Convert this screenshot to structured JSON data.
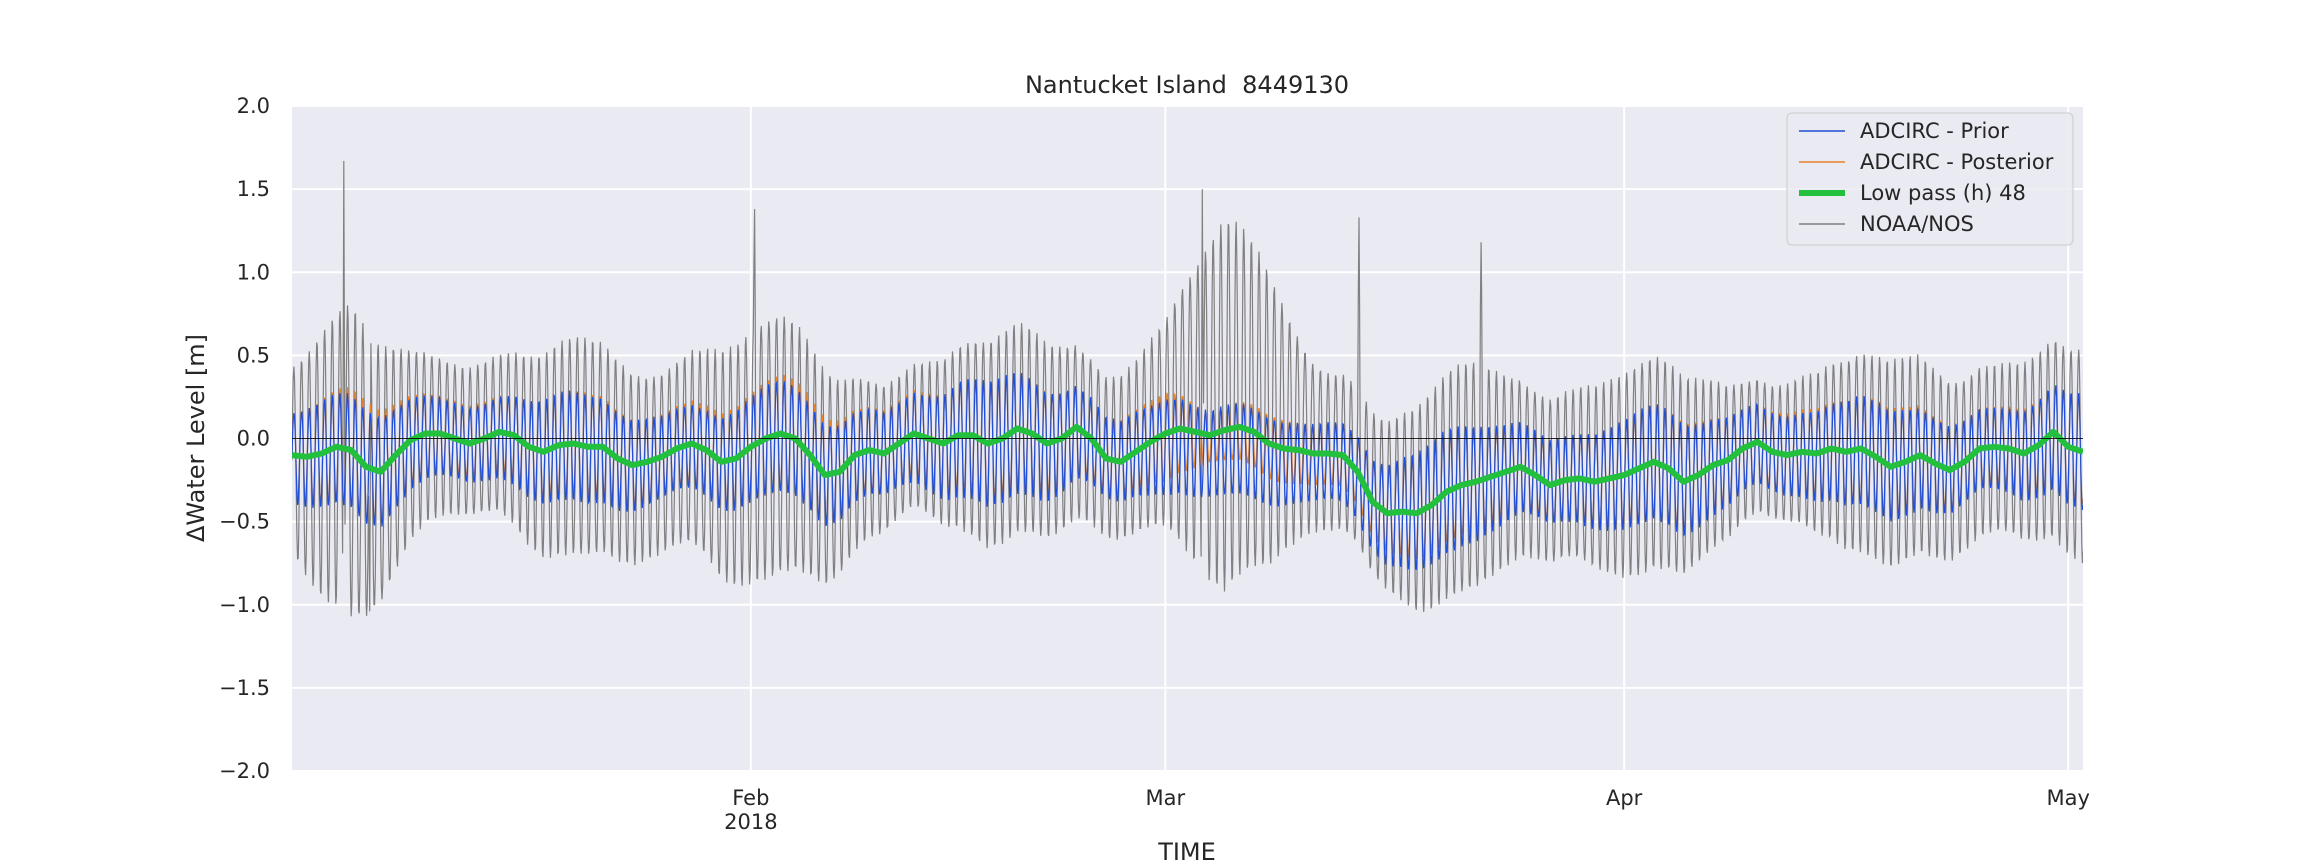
{
  "chart_data": {
    "type": "line",
    "title": "Nantucket Island  8449130",
    "xlabel": "TIME",
    "ylabel": "ΔWater Level [m]",
    "ylim": [
      -2.0,
      2.0
    ],
    "xlim": [
      "2018-01-01",
      "2018-05-02"
    ],
    "grid": true,
    "legend_position": "top-right",
    "y_ticks": [
      {
        "value": 2.0,
        "label": "2.0"
      },
      {
        "value": 1.5,
        "label": "1.5"
      },
      {
        "value": 1.0,
        "label": "1.0"
      },
      {
        "value": 0.5,
        "label": "0.5"
      },
      {
        "value": 0.0,
        "label": "0.0"
      },
      {
        "value": -0.5,
        "label": "−0.5"
      },
      {
        "value": -1.0,
        "label": "−1.0"
      },
      {
        "value": -1.5,
        "label": "−1.5"
      },
      {
        "value": -2.0,
        "label": "−2.0"
      }
    ],
    "x_ticks": [
      {
        "date": "2018-02-01",
        "label": "Feb",
        "sublabel": "2018"
      },
      {
        "date": "2018-03-01",
        "label": "Mar",
        "sublabel": ""
      },
      {
        "date": "2018-04-01",
        "label": "Apr",
        "sublabel": ""
      },
      {
        "date": "2018-05-01",
        "label": "May",
        "sublabel": ""
      }
    ],
    "tide_period_hours": 12.42,
    "series": [
      {
        "name": "ADCIRC - Prior",
        "color": "#1f4fd8",
        "kind": "tidal",
        "tidal_amplitude_m": 0.3,
        "envelope": [
          [
            "2018-01-01",
            0.27
          ],
          [
            "2018-01-07",
            0.3
          ],
          [
            "2018-01-15",
            0.26
          ],
          [
            "2018-01-25",
            0.3
          ],
          [
            "2018-02-05",
            0.28
          ],
          [
            "2018-02-15",
            0.33
          ],
          [
            "2018-02-25",
            0.3
          ],
          [
            "2018-03-01",
            0.29
          ],
          [
            "2018-03-04",
            0.22
          ],
          [
            "2018-03-10",
            0.27
          ],
          [
            "2018-03-20",
            0.32
          ],
          [
            "2018-04-01",
            0.3
          ],
          [
            "2018-04-15",
            0.28
          ],
          [
            "2018-05-01",
            0.3
          ]
        ],
        "offset": [
          [
            "2018-01-01",
            -0.05
          ],
          [
            "2018-02-27",
            -0.05
          ],
          [
            "2018-03-03",
            -0.3
          ],
          [
            "2018-03-07",
            -0.3
          ],
          [
            "2018-03-12",
            -0.15
          ],
          [
            "2018-03-20",
            -0.1
          ],
          [
            "2018-03-25",
            -0.05
          ],
          [
            "2018-05-02",
            -0.05
          ]
        ]
      },
      {
        "name": "ADCIRC - Posterior",
        "color": "#e8832a",
        "kind": "tidal",
        "tidal_amplitude_m": 0.26,
        "envelope": [
          [
            "2018-01-01",
            0.25
          ],
          [
            "2018-01-06",
            0.32
          ],
          [
            "2018-01-15",
            0.24
          ],
          [
            "2018-01-25",
            0.29
          ],
          [
            "2018-02-05",
            0.3
          ],
          [
            "2018-02-15",
            0.3
          ],
          [
            "2018-02-25",
            0.28
          ],
          [
            "2018-03-01",
            0.27
          ],
          [
            "2018-03-04",
            0.12
          ],
          [
            "2018-03-09",
            0.2
          ],
          [
            "2018-03-20",
            0.28
          ],
          [
            "2018-04-01",
            0.29
          ],
          [
            "2018-04-15",
            0.28
          ],
          [
            "2018-05-01",
            0.28
          ]
        ],
        "offset": [
          [
            "2018-01-01",
            0.0
          ],
          [
            "2018-02-27",
            0.0
          ],
          [
            "2018-03-03",
            -0.05
          ],
          [
            "2018-03-07",
            -0.05
          ],
          [
            "2018-03-12",
            -0.05
          ],
          [
            "2018-05-02",
            0.0
          ]
        ]
      },
      {
        "name": "Low pass (h) 48",
        "color": "#22c03c",
        "kind": "smooth",
        "points": [
          [
            "2018-01-01",
            -0.1
          ],
          [
            "2018-01-02",
            -0.11
          ],
          [
            "2018-01-03",
            -0.09
          ],
          [
            "2018-01-04",
            -0.05
          ],
          [
            "2018-01-05",
            -0.07
          ],
          [
            "2018-01-06",
            -0.17
          ],
          [
            "2018-01-07",
            -0.2
          ],
          [
            "2018-01-08",
            -0.1
          ],
          [
            "2018-01-09",
            -0.01
          ],
          [
            "2018-01-10",
            0.03
          ],
          [
            "2018-01-11",
            0.03
          ],
          [
            "2018-01-12",
            0.0
          ],
          [
            "2018-01-13",
            -0.03
          ],
          [
            "2018-01-14",
            0.0
          ],
          [
            "2018-01-15",
            0.04
          ],
          [
            "2018-01-16",
            0.02
          ],
          [
            "2018-01-17",
            -0.05
          ],
          [
            "2018-01-18",
            -0.08
          ],
          [
            "2018-01-19",
            -0.04
          ],
          [
            "2018-01-20",
            -0.03
          ],
          [
            "2018-01-21",
            -0.05
          ],
          [
            "2018-01-22",
            -0.05
          ],
          [
            "2018-01-23",
            -0.12
          ],
          [
            "2018-01-24",
            -0.16
          ],
          [
            "2018-01-25",
            -0.14
          ],
          [
            "2018-01-26",
            -0.11
          ],
          [
            "2018-01-27",
            -0.06
          ],
          [
            "2018-01-28",
            -0.03
          ],
          [
            "2018-01-29",
            -0.07
          ],
          [
            "2018-01-30",
            -0.14
          ],
          [
            "2018-01-31",
            -0.12
          ],
          [
            "2018-02-01",
            -0.05
          ],
          [
            "2018-02-02",
            0.0
          ],
          [
            "2018-02-03",
            0.03
          ],
          [
            "2018-02-04",
            0.0
          ],
          [
            "2018-02-05",
            -0.1
          ],
          [
            "2018-02-06",
            -0.22
          ],
          [
            "2018-02-07",
            -0.2
          ],
          [
            "2018-02-08",
            -0.1
          ],
          [
            "2018-02-09",
            -0.07
          ],
          [
            "2018-02-10",
            -0.09
          ],
          [
            "2018-02-11",
            -0.03
          ],
          [
            "2018-02-12",
            0.03
          ],
          [
            "2018-02-13",
            0.0
          ],
          [
            "2018-02-14",
            -0.03
          ],
          [
            "2018-02-15",
            0.02
          ],
          [
            "2018-02-16",
            0.02
          ],
          [
            "2018-02-17",
            -0.03
          ],
          [
            "2018-02-18",
            0.0
          ],
          [
            "2018-02-19",
            0.06
          ],
          [
            "2018-02-20",
            0.03
          ],
          [
            "2018-02-21",
            -0.03
          ],
          [
            "2018-02-22",
            0.0
          ],
          [
            "2018-02-23",
            0.07
          ],
          [
            "2018-02-24",
            0.0
          ],
          [
            "2018-02-25",
            -0.12
          ],
          [
            "2018-02-26",
            -0.14
          ],
          [
            "2018-02-27",
            -0.08
          ],
          [
            "2018-02-28",
            -0.02
          ],
          [
            "2018-03-01",
            0.03
          ],
          [
            "2018-03-02",
            0.06
          ],
          [
            "2018-03-03",
            0.04
          ],
          [
            "2018-03-04",
            0.02
          ],
          [
            "2018-03-05",
            0.05
          ],
          [
            "2018-03-06",
            0.07
          ],
          [
            "2018-03-07",
            0.04
          ],
          [
            "2018-03-08",
            -0.03
          ],
          [
            "2018-03-09",
            -0.06
          ],
          [
            "2018-03-10",
            -0.07
          ],
          [
            "2018-03-11",
            -0.09
          ],
          [
            "2018-03-12",
            -0.09
          ],
          [
            "2018-03-13",
            -0.1
          ],
          [
            "2018-03-14",
            -0.2
          ],
          [
            "2018-03-15",
            -0.38
          ],
          [
            "2018-03-16",
            -0.45
          ],
          [
            "2018-03-17",
            -0.44
          ],
          [
            "2018-03-18",
            -0.45
          ],
          [
            "2018-03-19",
            -0.4
          ],
          [
            "2018-03-20",
            -0.32
          ],
          [
            "2018-03-21",
            -0.28
          ],
          [
            "2018-03-22",
            -0.26
          ],
          [
            "2018-03-23",
            -0.23
          ],
          [
            "2018-03-24",
            -0.2
          ],
          [
            "2018-03-25",
            -0.17
          ],
          [
            "2018-03-26",
            -0.22
          ],
          [
            "2018-03-27",
            -0.28
          ],
          [
            "2018-03-28",
            -0.25
          ],
          [
            "2018-03-29",
            -0.24
          ],
          [
            "2018-03-30",
            -0.26
          ],
          [
            "2018-03-31",
            -0.24
          ],
          [
            "2018-04-01",
            -0.22
          ],
          [
            "2018-04-02",
            -0.18
          ],
          [
            "2018-04-03",
            -0.14
          ],
          [
            "2018-04-04",
            -0.18
          ],
          [
            "2018-04-05",
            -0.26
          ],
          [
            "2018-04-06",
            -0.22
          ],
          [
            "2018-04-07",
            -0.16
          ],
          [
            "2018-04-08",
            -0.13
          ],
          [
            "2018-04-09",
            -0.06
          ],
          [
            "2018-04-10",
            -0.02
          ],
          [
            "2018-04-11",
            -0.08
          ],
          [
            "2018-04-12",
            -0.1
          ],
          [
            "2018-04-13",
            -0.08
          ],
          [
            "2018-04-14",
            -0.09
          ],
          [
            "2018-04-15",
            -0.06
          ],
          [
            "2018-04-16",
            -0.08
          ],
          [
            "2018-04-17",
            -0.06
          ],
          [
            "2018-04-18",
            -0.11
          ],
          [
            "2018-04-19",
            -0.17
          ],
          [
            "2018-04-20",
            -0.14
          ],
          [
            "2018-04-21",
            -0.1
          ],
          [
            "2018-04-22",
            -0.15
          ],
          [
            "2018-04-23",
            -0.19
          ],
          [
            "2018-04-24",
            -0.14
          ],
          [
            "2018-04-25",
            -0.06
          ],
          [
            "2018-04-26",
            -0.05
          ],
          [
            "2018-04-27",
            -0.06
          ],
          [
            "2018-04-28",
            -0.09
          ],
          [
            "2018-04-29",
            -0.04
          ],
          [
            "2018-04-30",
            0.04
          ],
          [
            "2018-05-01",
            -0.05
          ],
          [
            "2018-05-02",
            -0.08
          ]
        ]
      },
      {
        "name": "NOAA/NOS",
        "color": "#808080",
        "kind": "tidal",
        "tidal_amplitude_m": 0.55,
        "envelope": [
          [
            "2018-01-01",
            0.55
          ],
          [
            "2018-01-03",
            0.7
          ],
          [
            "2018-01-05",
            0.8
          ],
          [
            "2018-01-09",
            0.6
          ],
          [
            "2018-01-15",
            0.5
          ],
          [
            "2018-01-22",
            0.58
          ],
          [
            "2018-01-30",
            0.72
          ],
          [
            "2018-02-05",
            0.62
          ],
          [
            "2018-02-12",
            0.5
          ],
          [
            "2018-02-20",
            0.55
          ],
          [
            "2018-02-26",
            0.6
          ],
          [
            "2018-03-01",
            0.62
          ],
          [
            "2018-03-05",
            0.95
          ],
          [
            "2018-03-08",
            0.85
          ],
          [
            "2018-03-11",
            0.6
          ],
          [
            "2018-03-16",
            0.5
          ],
          [
            "2018-03-22",
            0.62
          ],
          [
            "2018-03-27",
            0.6
          ],
          [
            "2018-04-02",
            0.55
          ],
          [
            "2018-04-10",
            0.48
          ],
          [
            "2018-04-18",
            0.52
          ],
          [
            "2018-04-25",
            0.62
          ],
          [
            "2018-05-01",
            0.55
          ]
        ],
        "offset": [
          [
            "2018-01-01",
            -0.1
          ],
          [
            "2018-01-06",
            -0.2
          ],
          [
            "2018-01-10",
            0.0
          ],
          [
            "2018-02-06",
            -0.15
          ],
          [
            "2018-02-15",
            0.0
          ],
          [
            "2018-02-27",
            0.0
          ],
          [
            "2018-03-04",
            0.4
          ],
          [
            "2018-03-09",
            0.3
          ],
          [
            "2018-03-12",
            0.0
          ],
          [
            "2018-05-02",
            -0.05
          ]
        ],
        "spikes": [
          [
            "2018-01-04T12:00",
            1.67
          ],
          [
            "2018-02-01T06:00",
            1.38
          ],
          [
            "2018-03-03T12:00",
            1.5
          ],
          [
            "2018-03-14T02:00",
            1.33
          ],
          [
            "2018-03-22T08:00",
            1.18
          ],
          [
            "2018-01-06T06:00",
            -1.04
          ]
        ]
      }
    ]
  }
}
